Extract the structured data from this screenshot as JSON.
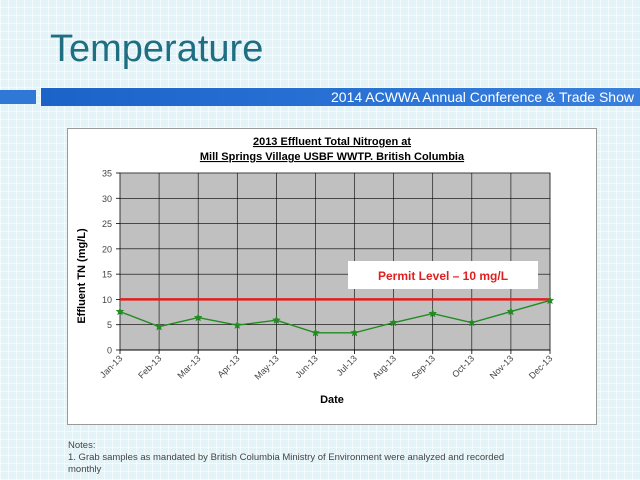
{
  "slide": {
    "title": "Temperature",
    "banner_text": "2014 ACWWA Annual Conference & Trade Show",
    "notes_heading": "Notes:",
    "notes_line1": "1. Grab samples as mandated by British Columbia Ministry of Environment were analyzed and recorded",
    "notes_line2": "monthly"
  },
  "colors": {
    "title": "#1f6e82",
    "banner": "#2b74d6",
    "plot_bg": "#c0c0c0",
    "series": "#228b22",
    "permit_line": "#e02020",
    "permit_label": "#e02020"
  },
  "chart_data": {
    "type": "line",
    "title_line1": "2013 Effluent Total Nitrogen at",
    "title_line2": "Mill Springs Village USBF WWTP. British Columbia",
    "xlabel": "Date",
    "ylabel": "Effluent TN (mg/L)",
    "ylim": [
      0,
      35
    ],
    "yticks": [
      0,
      5,
      10,
      15,
      20,
      25,
      30,
      35
    ],
    "grid": true,
    "categories": [
      "Jan-13",
      "Feb-13",
      "Mar-13",
      "Apr-13",
      "May-13",
      "Jun-13",
      "Jul-13",
      "Aug-13",
      "Sep-13",
      "Oct-13",
      "Nov-13",
      "Dec-13"
    ],
    "series": [
      {
        "values": [
          7.6,
          4.6,
          6.4,
          4.9,
          5.9,
          3.4,
          3.4,
          5.4,
          7.2,
          5.4,
          7.6,
          9.8
        ]
      }
    ],
    "permit": {
      "value": 10,
      "label": "Permit Level – 10 mg/L"
    }
  }
}
